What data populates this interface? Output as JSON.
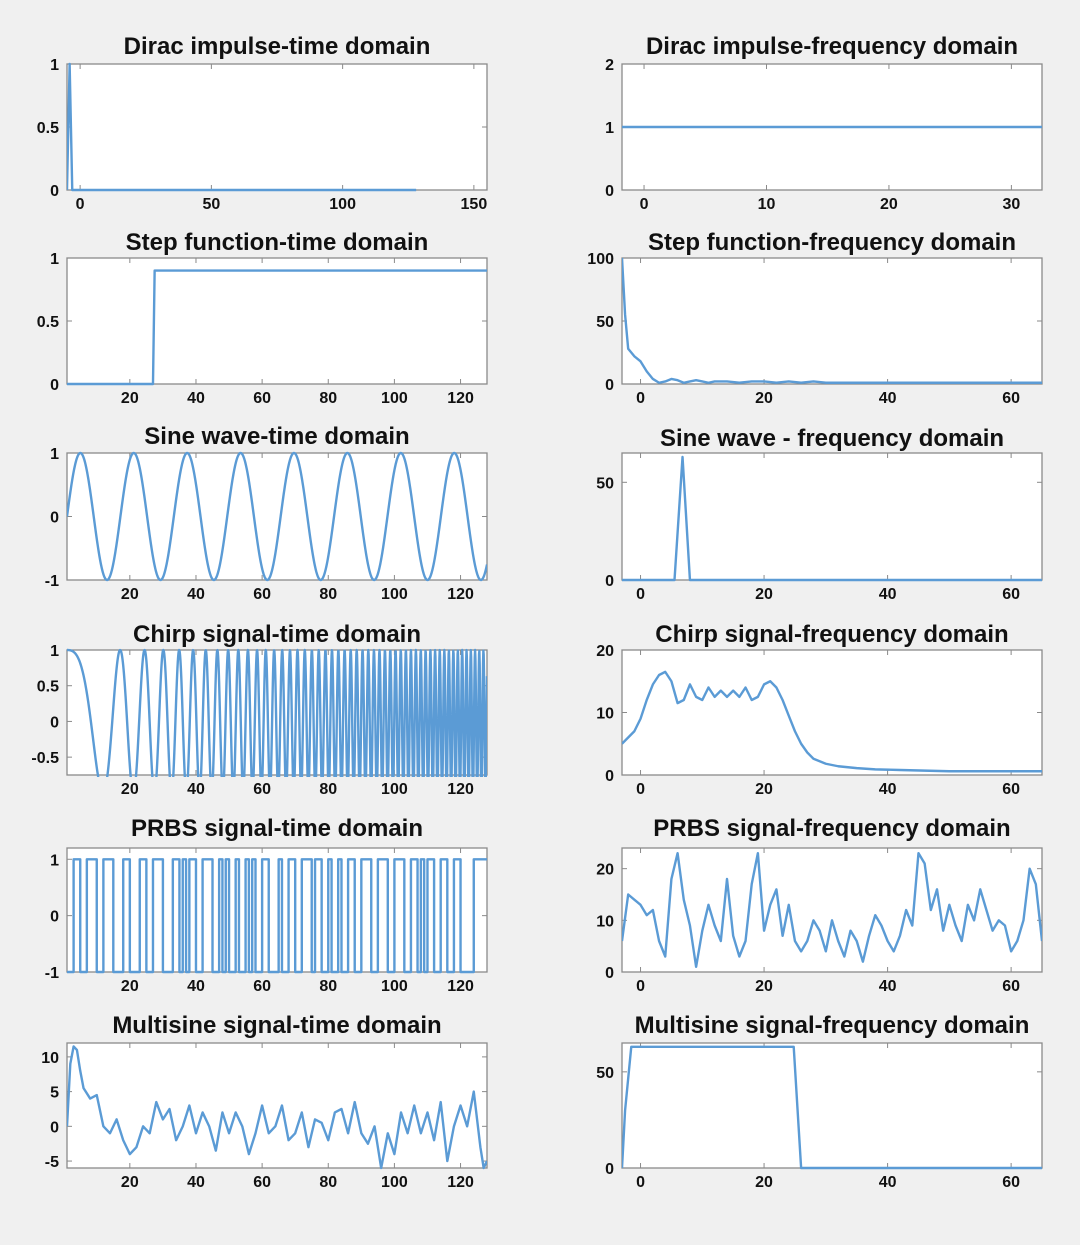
{
  "chart_data": [
    {
      "type": "line",
      "title": "Dirac impulse-time domain",
      "xlim": [
        -5,
        155
      ],
      "ylim": [
        0,
        1
      ],
      "xticks": [
        0,
        50,
        100,
        150
      ],
      "xtick_labels": [
        "0",
        "50",
        "100",
        "150"
      ],
      "yticks": [
        0,
        0.5,
        1
      ],
      "ytick_labels": [
        "0",
        "0.5",
        "1"
      ],
      "x": [
        -5,
        -4,
        -3,
        128
      ],
      "y": [
        0,
        1,
        0,
        0
      ]
    },
    {
      "type": "line",
      "title": "Dirac impulse-frequency domain",
      "xlim": [
        -1.8,
        32.5
      ],
      "ylim": [
        0,
        2
      ],
      "xticks": [
        0,
        10,
        20,
        30
      ],
      "xtick_labels": [
        "0",
        "10",
        "20",
        "30"
      ],
      "yticks": [
        0,
        1,
        2
      ],
      "ytick_labels": [
        "0",
        "1",
        "2"
      ],
      "x": [
        -1.8,
        32.5
      ],
      "y": [
        1,
        1
      ]
    },
    {
      "type": "line",
      "title": "Step function-time domain",
      "xlim": [
        1,
        128
      ],
      "ylim": [
        0,
        1
      ],
      "xticks": [
        20,
        40,
        60,
        80,
        100,
        120
      ],
      "xtick_labels": [
        "20",
        "40",
        "60",
        "80",
        "100",
        "120"
      ],
      "yticks": [
        0,
        0.5,
        1
      ],
      "ytick_labels": [
        "0",
        "0.5",
        "1"
      ],
      "x": [
        1,
        27,
        27.5,
        128
      ],
      "y": [
        0,
        0,
        0.9,
        0.9
      ]
    },
    {
      "type": "line",
      "title": "Step function-frequency domain",
      "xlim": [
        -3,
        65
      ],
      "ylim": [
        0,
        100
      ],
      "xticks": [
        0,
        20,
        40,
        60
      ],
      "xtick_labels": [
        "0",
        "20",
        "40",
        "60"
      ],
      "yticks": [
        0,
        50,
        100
      ],
      "ytick_labels": [
        "0",
        "50",
        "100"
      ],
      "x": [
        -3,
        -2.5,
        -2,
        -1,
        0,
        1,
        2,
        3,
        4,
        5,
        6,
        7,
        8,
        9,
        10,
        11,
        12,
        14,
        16,
        18,
        20,
        22,
        24,
        26,
        28,
        30,
        33,
        36,
        40,
        45,
        50,
        55,
        60,
        65
      ],
      "y": [
        100,
        55,
        28,
        22,
        18,
        10,
        4,
        1,
        2,
        4,
        3,
        1,
        2,
        3,
        2,
        1,
        2,
        2,
        1,
        2,
        2,
        1,
        2,
        1,
        2,
        1,
        1,
        1,
        1,
        1,
        1,
        1,
        1,
        1
      ]
    },
    {
      "type": "line",
      "title": "Sine wave-time domain",
      "xlim": [
        1,
        128
      ],
      "ylim": [
        -1,
        1
      ],
      "xticks": [
        20,
        40,
        60,
        80,
        100,
        120
      ],
      "xtick_labels": [
        "20",
        "40",
        "60",
        "80",
        "100",
        "120"
      ],
      "yticks": [
        -1,
        0,
        1
      ],
      "ytick_labels": [
        "-1",
        "0",
        "1"
      ],
      "function": "sin(2*pi*(x-1)/16.15)"
    },
    {
      "type": "line",
      "title": "Sine wave - frequency domain",
      "xlim": [
        -3,
        65
      ],
      "ylim": [
        0,
        65
      ],
      "xticks": [
        0,
        20,
        40,
        60
      ],
      "xtick_labels": [
        "0",
        "20",
        "40",
        "60"
      ],
      "yticks": [
        0,
        50
      ],
      "ytick_labels": [
        "0",
        "50"
      ],
      "x": [
        -3,
        5.5,
        6.8,
        8,
        65
      ],
      "y": [
        0,
        0,
        63,
        0,
        0
      ]
    },
    {
      "type": "line",
      "title": "Chirp signal-time domain",
      "xlim": [
        1,
        128
      ],
      "ylim": [
        -0.75,
        1
      ],
      "xticks": [
        20,
        40,
        60,
        80,
        100,
        120
      ],
      "xtick_labels": [
        "20",
        "40",
        "60",
        "80",
        "100",
        "120"
      ],
      "yticks": [
        -0.5,
        0,
        0.5,
        1
      ],
      "ytick_labels": [
        "-0.5",
        "0",
        "0.5",
        "1"
      ],
      "function": "cos(2*pi*(0.0121*(x-1)+0.00312*(x-1)^2))"
    },
    {
      "type": "line",
      "title": "Chirp signal-frequency domain",
      "xlim": [
        -3,
        65
      ],
      "ylim": [
        0,
        20
      ],
      "xticks": [
        0,
        20,
        40,
        60
      ],
      "xtick_labels": [
        "0",
        "20",
        "40",
        "60"
      ],
      "yticks": [
        0,
        10,
        20
      ],
      "ytick_labels": [
        "0",
        "10",
        "20"
      ],
      "x": [
        -3,
        -2,
        -1,
        0,
        1,
        2,
        3,
        4,
        5,
        6,
        7,
        8,
        9,
        10,
        11,
        12,
        13,
        14,
        15,
        16,
        17,
        18,
        19,
        20,
        21,
        22,
        23,
        24,
        25,
        26,
        27,
        28,
        30,
        32,
        35,
        38,
        42,
        46,
        50,
        55,
        60,
        65
      ],
      "y": [
        5,
        6,
        7,
        9,
        12,
        14.5,
        16,
        16.5,
        15,
        11.5,
        12,
        14.5,
        12.5,
        12,
        14,
        12.5,
        13.5,
        12.5,
        13.5,
        12.5,
        14,
        12,
        12.5,
        14.5,
        15,
        14,
        12,
        9.5,
        7,
        5,
        3.6,
        2.6,
        1.8,
        1.4,
        1.1,
        0.9,
        0.8,
        0.7,
        0.6,
        0.6,
        0.6,
        0.6
      ]
    },
    {
      "type": "line",
      "title": "PRBS signal-time domain",
      "xlim": [
        1,
        128
      ],
      "ylim": [
        -1,
        1.2
      ],
      "xticks": [
        20,
        40,
        60,
        80,
        100,
        120
      ],
      "xtick_labels": [
        "20",
        "40",
        "60",
        "80",
        "100",
        "120"
      ],
      "yticks": [
        -1,
        0,
        1
      ],
      "ytick_labels": [
        "-1",
        "0",
        "1"
      ],
      "transitions_x": [
        3,
        5,
        7,
        10,
        12,
        15,
        18,
        20,
        23,
        25,
        27,
        30,
        33,
        35,
        36,
        37,
        38,
        40,
        42,
        45,
        47,
        48,
        49,
        50,
        52,
        53,
        55,
        56,
        57,
        58,
        60,
        62,
        65,
        66,
        68,
        70,
        72,
        75,
        76,
        78,
        80,
        81,
        83,
        84,
        86,
        88,
        90,
        93,
        95,
        98,
        100,
        103,
        105,
        107,
        108,
        109,
        110,
        112,
        114,
        116,
        118,
        120,
        124
      ],
      "initial_level": -1
    },
    {
      "type": "line",
      "title": "PRBS signal-frequency domain",
      "xlim": [
        -3,
        65
      ],
      "ylim": [
        0,
        24
      ],
      "xticks": [
        0,
        20,
        40,
        60
      ],
      "xtick_labels": [
        "0",
        "20",
        "40",
        "60"
      ],
      "yticks": [
        0,
        10,
        20
      ],
      "ytick_labels": [
        "0",
        "10",
        "20"
      ],
      "x": [
        -3,
        -2,
        -1,
        0,
        1,
        2,
        3,
        4,
        5,
        6,
        7,
        8,
        9,
        10,
        11,
        12,
        13,
        14,
        15,
        16,
        17,
        18,
        19,
        20,
        21,
        22,
        23,
        24,
        25,
        26,
        27,
        28,
        29,
        30,
        31,
        32,
        33,
        34,
        35,
        36,
        37,
        38,
        39,
        40,
        41,
        42,
        43,
        44,
        45,
        46,
        47,
        48,
        49,
        50,
        51,
        52,
        53,
        54,
        55,
        56,
        57,
        58,
        59,
        60,
        61,
        62,
        63,
        64,
        65
      ],
      "y": [
        6,
        15,
        14,
        13,
        11,
        12,
        6,
        3,
        18,
        23,
        14,
        9,
        1,
        8,
        13,
        9,
        6,
        18,
        7,
        3,
        6,
        17,
        23,
        8,
        13,
        16,
        7,
        13,
        6,
        4,
        6,
        10,
        8,
        4,
        10,
        6,
        3,
        8,
        6,
        2,
        7,
        11,
        9,
        6,
        4,
        7,
        12,
        9,
        23,
        21,
        12,
        16,
        8,
        13,
        9,
        6,
        13,
        10,
        16,
        12,
        8,
        10,
        9,
        4,
        6,
        10,
        20,
        17,
        6
      ]
    },
    {
      "type": "line",
      "title": "Multisine signal-time domain",
      "xlim": [
        1,
        128
      ],
      "ylim": [
        -6,
        12
      ],
      "xticks": [
        20,
        40,
        60,
        80,
        100,
        120
      ],
      "xtick_labels": [
        "20",
        "40",
        "60",
        "80",
        "100",
        "120"
      ],
      "yticks": [
        -5,
        0,
        5,
        10
      ],
      "ytick_labels": [
        "-5",
        "0",
        "5",
        "10"
      ],
      "x": [
        1,
        2,
        3,
        4,
        5,
        6,
        8,
        10,
        12,
        14,
        16,
        18,
        20,
        22,
        24,
        26,
        28,
        30,
        32,
        34,
        36,
        38,
        40,
        42,
        44,
        46,
        48,
        50,
        52,
        54,
        56,
        58,
        60,
        62,
        64,
        66,
        68,
        70,
        72,
        74,
        76,
        78,
        80,
        82,
        84,
        86,
        88,
        90,
        92,
        94,
        96,
        98,
        100,
        102,
        104,
        106,
        108,
        110,
        112,
        114,
        116,
        118,
        120,
        122,
        124,
        126,
        127,
        128
      ],
      "y": [
        0,
        9,
        11.5,
        11,
        8,
        5.5,
        4,
        4.5,
        0,
        -1,
        1,
        -2,
        -4,
        -3,
        0,
        -1,
        3.5,
        1,
        2.5,
        -2,
        0,
        3,
        -1,
        2,
        0,
        -3.5,
        2,
        -1,
        2,
        0,
        -4,
        -1,
        3,
        -1,
        0,
        3,
        -2,
        -1,
        2,
        -3,
        1,
        0.5,
        -2,
        2,
        2.5,
        -1,
        3.5,
        -1,
        -2.5,
        0,
        -6,
        -1,
        -4,
        2,
        -1,
        3,
        -1,
        2,
        -2,
        3.5,
        -5,
        0,
        3,
        0,
        5,
        -3,
        -6,
        -5
      ]
    },
    {
      "type": "line",
      "title": "Multisine signal-frequency domain",
      "xlim": [
        -3,
        65
      ],
      "ylim": [
        0,
        65
      ],
      "xticks": [
        0,
        20,
        40,
        60
      ],
      "xtick_labels": [
        "0",
        "20",
        "40",
        "60"
      ],
      "yticks": [
        0,
        50
      ],
      "ytick_labels": [
        "0",
        "50"
      ],
      "x": [
        -3,
        -2.5,
        -1.5,
        24.8,
        26,
        65
      ],
      "y": [
        0,
        30,
        63,
        63,
        0,
        0
      ]
    }
  ]
}
